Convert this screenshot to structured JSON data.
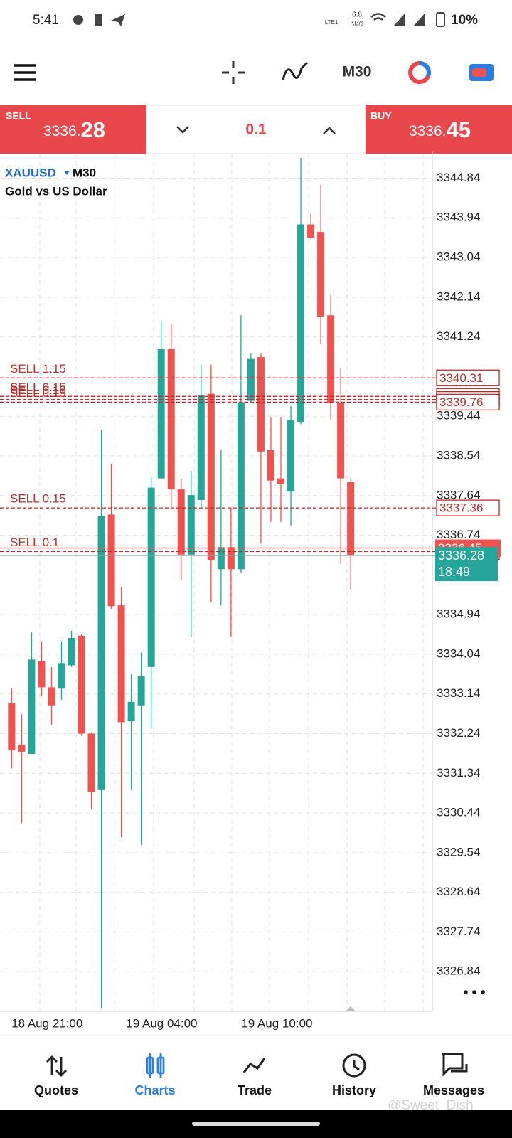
{
  "status": {
    "time": "5:41",
    "speed": "6.8",
    "speed_unit": "KB/s",
    "network": "LTE1",
    "battery": "10%"
  },
  "toolbar": {
    "timeframe": "M30"
  },
  "trade_bar": {
    "sell_label": "SELL",
    "sell_lead": "3336.",
    "sell_tail": "28",
    "volume": "0.1",
    "buy_label": "BUY",
    "buy_lead": "3336.",
    "buy_tail": "45"
  },
  "chart": {
    "type": "candlestick",
    "symbol": "XAUUSD",
    "timeframe": "M30",
    "description": "Gold vs US Dollar",
    "up_color": "#26a69a",
    "down_color": "#ef5350",
    "open": [
      3332.93,
      3331.99,
      3331.78,
      3333.88,
      3333.29,
      3333.26,
      3333.79,
      3334.46,
      3332.24,
      3330.96,
      3337.21,
      3335.15,
      3332.52,
      3332.88,
      3333.75,
      3338.03,
      3340.96,
      3337.78,
      3336.3,
      3337.54,
      3339.95,
      3335.97,
      3336.47,
      3335.97,
      3339.79,
      3340.78,
      3338.67,
      3338.03,
      3337.73,
      3339.31,
      3343.79,
      3343.62,
      3341.73,
      3339.74,
      3337.95
    ],
    "high": [
      3333.26,
      3332.68,
      3334.54,
      3334.33,
      3333.75,
      3334.33,
      3334.57,
      3334.49,
      3332.27,
      3339.13,
      3338.36,
      3335.56,
      3333.59,
      3334.08,
      3338.06,
      3341.57,
      3341.52,
      3338.03,
      3338.2,
      3340.61,
      3340.61,
      3338.69,
      3337.37,
      3341.73,
      3340.86,
      3340.86,
      3339.43,
      3339.43,
      3339.67,
      3345.3,
      3344.03,
      3344.69,
      3342.19,
      3340.53,
      3338.03
    ],
    "low": [
      3331.45,
      3330.21,
      3331.78,
      3333.09,
      3332.44,
      3333.01,
      3333.75,
      3332.19,
      3330.54,
      3326.02,
      3335.07,
      3329.89,
      3330.96,
      3329.72,
      3332.35,
      3338.03,
      3337.37,
      3335.73,
      3334.44,
      3337.37,
      3335.23,
      3335.15,
      3334.44,
      3335.89,
      3339.74,
      3336.55,
      3337.04,
      3337.04,
      3336.96,
      3339.26,
      3343.46,
      3341.07,
      3339.35,
      3336.09,
      3335.51
    ],
    "close": [
      3331.86,
      3331.83,
      3333.92,
      3333.29,
      3332.88,
      3333.84,
      3334.41,
      3332.24,
      3330.92,
      3337.17,
      3335.13,
      3332.5,
      3332.96,
      3333.54,
      3337.82,
      3340.96,
      3337.78,
      3336.3,
      3337.65,
      3339.92,
      3336.17,
      3336.47,
      3335.97,
      3339.76,
      3340.74,
      3338.64,
      3337.98,
      3337.9,
      3339.35,
      3343.79,
      3343.49,
      3341.7,
      3339.74,
      3338.03,
      3336.28
    ],
    "ylim": [
      3325.94,
      3345.38
    ],
    "yticks": [
      3344.84,
      3343.94,
      3343.04,
      3342.14,
      3341.24,
      3339.44,
      3338.54,
      3337.64,
      3336.74,
      3334.94,
      3334.04,
      3333.14,
      3332.24,
      3331.34,
      3330.44,
      3329.54,
      3328.64,
      3327.74,
      3326.84
    ],
    "x_labels": [
      "18 Aug 21:00",
      "19 Aug 04:00",
      "19 Aug 10:00"
    ],
    "orders": [
      {
        "label": "SELL 1.15",
        "price": 3340.31
      },
      {
        "label": "SELL 0.15",
        "price": 3339.89
      },
      {
        "label": "SELL 0.15",
        "price": 3339.82
      },
      {
        "label": "SELL 0.15",
        "price": 3339.76
      },
      {
        "label": "SELL 0.15",
        "price": 3337.36
      },
      {
        "label": "SELL 0.1",
        "price": 3336.37
      }
    ],
    "buy_line": 3336.45,
    "bid_line": 3336.28,
    "bid_timer": "18:49"
  },
  "nav": [
    "Quotes",
    "Charts",
    "Trade",
    "History",
    "Messages"
  ],
  "watermark": "@Sweet_Dish"
}
